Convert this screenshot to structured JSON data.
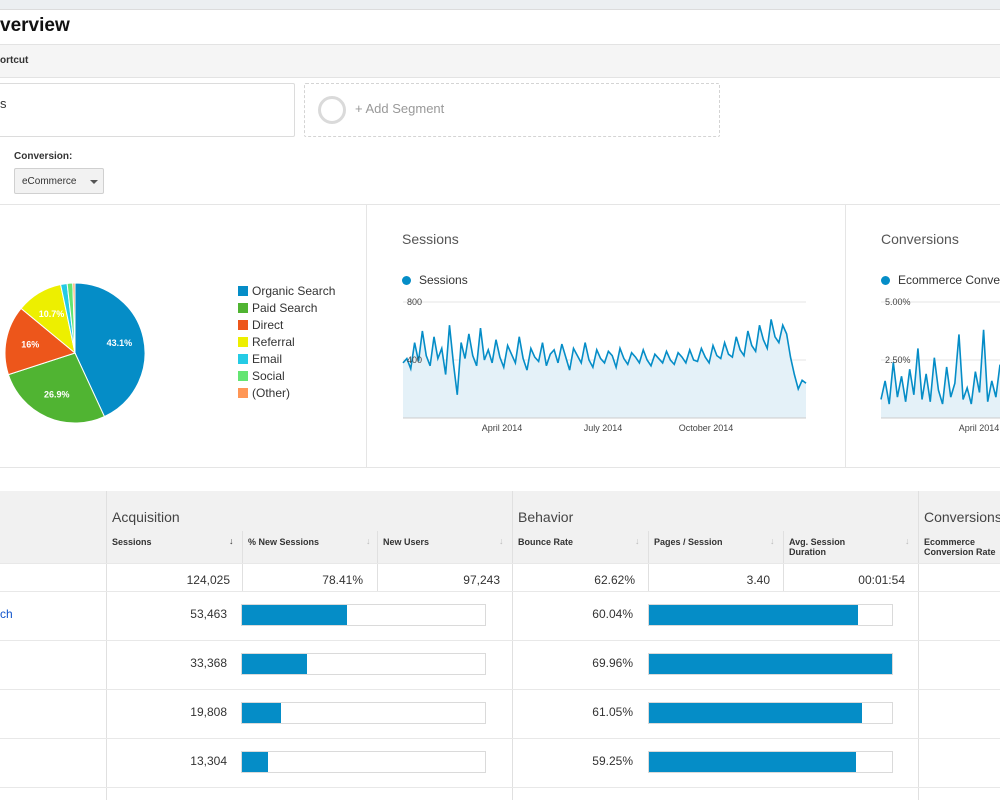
{
  "header": {
    "title": "verview",
    "shortcut_label": "ortcut"
  },
  "segments": {
    "current_fragment": "s",
    "add_label": "+ Add Segment"
  },
  "conversion": {
    "label": "Conversion:",
    "selected": "eCommerce"
  },
  "pie": {
    "slices": [
      {
        "name": "Organic Search",
        "value": 43.1,
        "color": "#058dc7",
        "label": "43.1%"
      },
      {
        "name": "Paid Search",
        "value": 26.9,
        "color": "#50b432",
        "label": "26.9%"
      },
      {
        "name": "Direct",
        "value": 16.0,
        "color": "#ed561b",
        "label": "16%"
      },
      {
        "name": "Referral",
        "value": 10.7,
        "color": "#edef00",
        "label": "10.7%"
      },
      {
        "name": "Email",
        "value": 1.5,
        "color": "#24cbe5",
        "label": ""
      },
      {
        "name": "Social",
        "value": 1.3,
        "color": "#64e572",
        "label": ""
      },
      {
        "name": "(Other)",
        "value": 0.5,
        "color": "#ff9655",
        "label": ""
      }
    ]
  },
  "sessions_card": {
    "title": "Sessions",
    "series": "Sessions",
    "y_ticks": [
      "800",
      "400"
    ],
    "x_ticks": [
      "April 2014",
      "July 2014",
      "October 2014"
    ]
  },
  "conversions_card": {
    "title": "Conversions",
    "series": "Ecommerce Conver",
    "y_ticks": [
      "5.00%",
      "2.50%"
    ],
    "x_ticks": [
      "April 2014"
    ]
  },
  "table": {
    "groups": {
      "acquisition": "Acquisition",
      "behavior": "Behavior",
      "conversions": "Conversions"
    },
    "columns": {
      "sessions": "Sessions",
      "new_sessions": "% New Sessions",
      "new_users": "New Users",
      "bounce": "Bounce Rate",
      "pages": "Pages / Session",
      "duration": "Avg. Session Duration",
      "conv_rate": "Ecommerce Conversion Rate"
    },
    "totals": {
      "sessions": "124,025",
      "new_sessions": "78.41%",
      "new_users": "97,243",
      "bounce": "62.62%",
      "pages": "3.40",
      "duration": "00:01:54"
    },
    "rows": [
      {
        "label": "ch",
        "sessions": "53,463",
        "sessions_share": 0.431,
        "bounce": "60.04%",
        "pages_rel": 0.86
      },
      {
        "label": "",
        "sessions": "33,368",
        "sessions_share": 0.269,
        "bounce": "69.96%",
        "pages_rel": 1.0
      },
      {
        "label": "",
        "sessions": "19,808",
        "sessions_share": 0.16,
        "bounce": "61.05%",
        "pages_rel": 0.875
      },
      {
        "label": "",
        "sessions": "13,304",
        "sessions_share": 0.107,
        "bounce": "59.25%",
        "pages_rel": 0.85
      }
    ]
  },
  "chart_data": [
    {
      "type": "pie",
      "categories": [
        "Organic Search",
        "Paid Search",
        "Direct",
        "Referral",
        "Email",
        "Social",
        "(Other)"
      ],
      "values": [
        43.1,
        26.9,
        16.0,
        10.7,
        1.5,
        1.3,
        0.5
      ]
    },
    {
      "type": "area",
      "title": "Sessions",
      "series": [
        {
          "name": "Sessions",
          "values": [
            380,
            410,
            340,
            520,
            390,
            600,
            430,
            360,
            560,
            410,
            480,
            300,
            640,
            380,
            160,
            520,
            410,
            580,
            430,
            360,
            620,
            400,
            470,
            380,
            540,
            420,
            350,
            500,
            440,
            380,
            560,
            410,
            330,
            480,
            420,
            390,
            520,
            360,
            440,
            470,
            380,
            510,
            420,
            330,
            480,
            430,
            380,
            520,
            400,
            350,
            470,
            410,
            380,
            460,
            430,
            350,
            480,
            410,
            370,
            450,
            420,
            380,
            470,
            400,
            360,
            440,
            410,
            380,
            460,
            400,
            370,
            450,
            420,
            380,
            470,
            400,
            390,
            480,
            420,
            380,
            500,
            430,
            410,
            520,
            440,
            420,
            560,
            470,
            430,
            600,
            500,
            460,
            640,
            540,
            480,
            680,
            560,
            520,
            640,
            580,
            420,
            300,
            200,
            260,
            240
          ]
        }
      ],
      "ylim": [
        0,
        800
      ],
      "x_ticks": [
        "April 2014",
        "July 2014",
        "October 2014"
      ]
    },
    {
      "type": "area",
      "title": "Conversions",
      "series": [
        {
          "name": "Ecommerce Conver",
          "values": [
            0.8,
            1.6,
            0.6,
            2.4,
            0.9,
            1.8,
            0.7,
            2.1,
            1.0,
            3.0,
            0.8,
            1.9,
            0.7,
            2.6,
            1.2,
            0.6,
            2.2,
            0.9,
            1.5,
            3.6,
            0.8,
            1.3,
            0.6,
            2.0,
            1.1,
            3.8,
            0.7,
            1.6,
            0.9,
            2.3
          ]
        }
      ],
      "ylim": [
        0,
        5.0
      ],
      "x_ticks": [
        "April 2014"
      ]
    }
  ]
}
